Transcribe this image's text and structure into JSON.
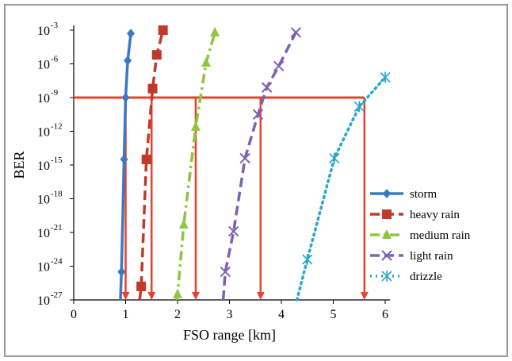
{
  "chart_data": {
    "type": "line",
    "xlabel": "FSO range [km]",
    "ylabel": "BER",
    "xlim": [
      0,
      6
    ],
    "ylim_log10": [
      -27,
      -3
    ],
    "y_scale": "log",
    "x_ticks": [
      0,
      1,
      2,
      3,
      4,
      5,
      6
    ],
    "y_ticks": [
      {
        "base": "10",
        "exp": "-3",
        "value": -3
      },
      {
        "base": "10",
        "exp": "-6",
        "value": -6
      },
      {
        "base": "10",
        "exp": "-9",
        "value": -9
      },
      {
        "base": "10",
        "exp": "-12",
        "value": -12
      },
      {
        "base": "10",
        "exp": "-15",
        "value": -15
      },
      {
        "base": "10",
        "exp": "-18",
        "value": -18
      },
      {
        "base": "10",
        "exp": "-21",
        "value": -21
      },
      {
        "base": "10",
        "exp": "-24",
        "value": -24
      },
      {
        "base": "10",
        "exp": "-27",
        "value": -27
      }
    ],
    "grid": false,
    "legend_position": "right",
    "series": [
      {
        "name": "storm",
        "color": "#3a78c2",
        "dash": "solid",
        "marker": "diamond",
        "x_log10ber": [
          [
            0.9,
            -27
          ],
          [
            0.92,
            -24.5
          ],
          [
            0.97,
            -14.5
          ],
          [
            1.0,
            -9
          ],
          [
            1.04,
            -5.7
          ],
          [
            1.1,
            -3.3
          ]
        ]
      },
      {
        "name": "heavy rain",
        "color": "#c0392b",
        "dash": "dashed",
        "marker": "square",
        "x_log10ber": [
          [
            1.27,
            -27
          ],
          [
            1.3,
            -25.8
          ],
          [
            1.4,
            -14.5
          ],
          [
            1.52,
            -8.2
          ],
          [
            1.6,
            -5.2
          ],
          [
            1.72,
            -3
          ]
        ]
      },
      {
        "name": "medium rain",
        "color": "#8ec63f",
        "dash": "dashdot",
        "marker": "triangle",
        "x_log10ber": [
          [
            1.98,
            -27
          ],
          [
            2.0,
            -26.5
          ],
          [
            2.12,
            -20.3
          ],
          [
            2.35,
            -11.6
          ],
          [
            2.55,
            -5.9
          ],
          [
            2.72,
            -3.2
          ]
        ]
      },
      {
        "name": "light rain",
        "color": "#7b62b3",
        "dash": "dashed",
        "marker": "cross",
        "x_log10ber": [
          [
            2.88,
            -27
          ],
          [
            2.92,
            -24.5
          ],
          [
            3.08,
            -20.9
          ],
          [
            3.3,
            -14.4
          ],
          [
            3.55,
            -10.5
          ],
          [
            3.72,
            -8.1
          ],
          [
            3.95,
            -6.2
          ],
          [
            4.28,
            -3.2
          ]
        ]
      },
      {
        "name": "drizzle",
        "color": "#2aa7c9",
        "dash": "dotted",
        "marker": "asterisk",
        "x_log10ber": [
          [
            4.3,
            -27
          ],
          [
            4.5,
            -23.4
          ],
          [
            5.02,
            -14.4
          ],
          [
            5.5,
            -9.8
          ],
          [
            6.0,
            -7.2
          ]
        ]
      }
    ],
    "annotations": {
      "threshold_color": "#e8412f",
      "threshold_log10ber": -9,
      "threshold_x_max": 5.6,
      "drop_lines_x": [
        1.0,
        1.5,
        2.35,
        3.6,
        5.6
      ]
    }
  }
}
